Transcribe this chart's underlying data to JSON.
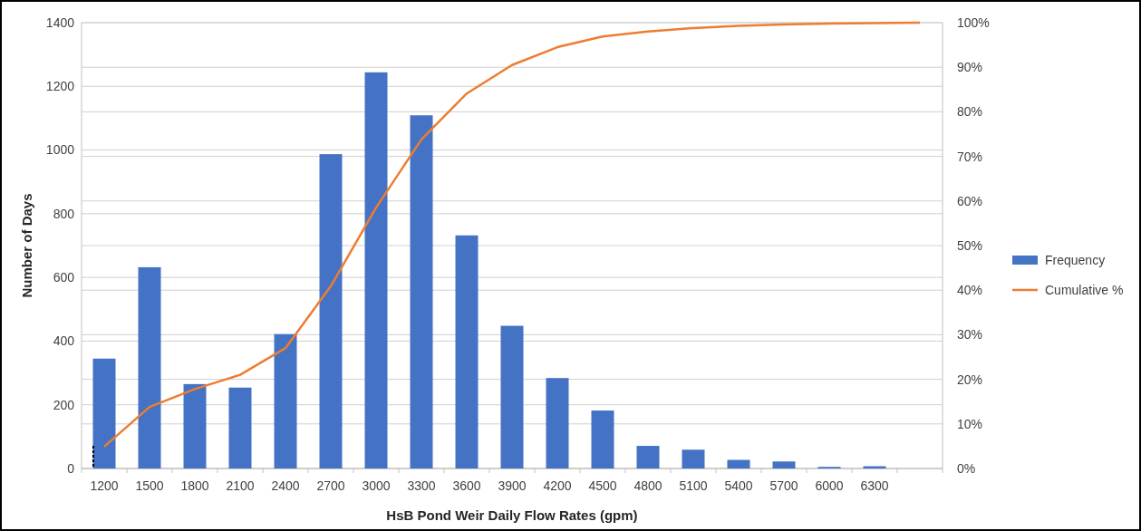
{
  "chart_data": {
    "type": "bar",
    "xlabel": "HsB Pond Weir Daily Flow Rates (gpm)",
    "ylabel": "Number of Days",
    "categories": [
      "1200",
      "1500",
      "1800",
      "2100",
      "2400",
      "2700",
      "3000",
      "3300",
      "3600",
      "3900",
      "4200",
      "4500",
      "4800",
      "5100",
      "5400",
      "5700",
      "6000",
      "6300",
      null
    ],
    "series": [
      {
        "name": "Frequency",
        "color": "#4472c4",
        "values": [
          345,
          632,
          265,
          254,
          422,
          987,
          1244,
          1109,
          732,
          448,
          284,
          182,
          71,
          59,
          27,
          22,
          5,
          7,
          0
        ]
      },
      {
        "name": "Cumulative %",
        "type": "line",
        "axis": "y2",
        "color": "#ed7d31",
        "values": [
          4.9,
          13.8,
          17.8,
          21.0,
          27.0,
          40.9,
          58.5,
          73.8,
          84.1,
          90.5,
          94.5,
          96.9,
          98.0,
          98.8,
          99.3,
          99.6,
          99.8,
          99.9,
          100
        ]
      }
    ],
    "ylim": [
      0,
      1400
    ],
    "yticks": [
      0,
      200,
      400,
      600,
      800,
      1000,
      1200,
      1400
    ],
    "y2lim": [
      0,
      100
    ],
    "y2ticks": [
      {
        "value": 0,
        "label": "0%"
      },
      {
        "value": 10,
        "label": "10%"
      },
      {
        "value": 20,
        "label": "20%"
      },
      {
        "value": 30,
        "label": "30%"
      },
      {
        "value": 40,
        "label": "40%"
      },
      {
        "value": 50,
        "label": "50%"
      },
      {
        "value": 60,
        "label": "60%"
      },
      {
        "value": 70,
        "label": "70%"
      },
      {
        "value": 80,
        "label": "80%"
      },
      {
        "value": 90,
        "label": "90%"
      },
      {
        "value": 100,
        "label": "100%"
      }
    ],
    "grid": true,
    "legend": "right",
    "marker": "none",
    "line_style": "solid"
  }
}
